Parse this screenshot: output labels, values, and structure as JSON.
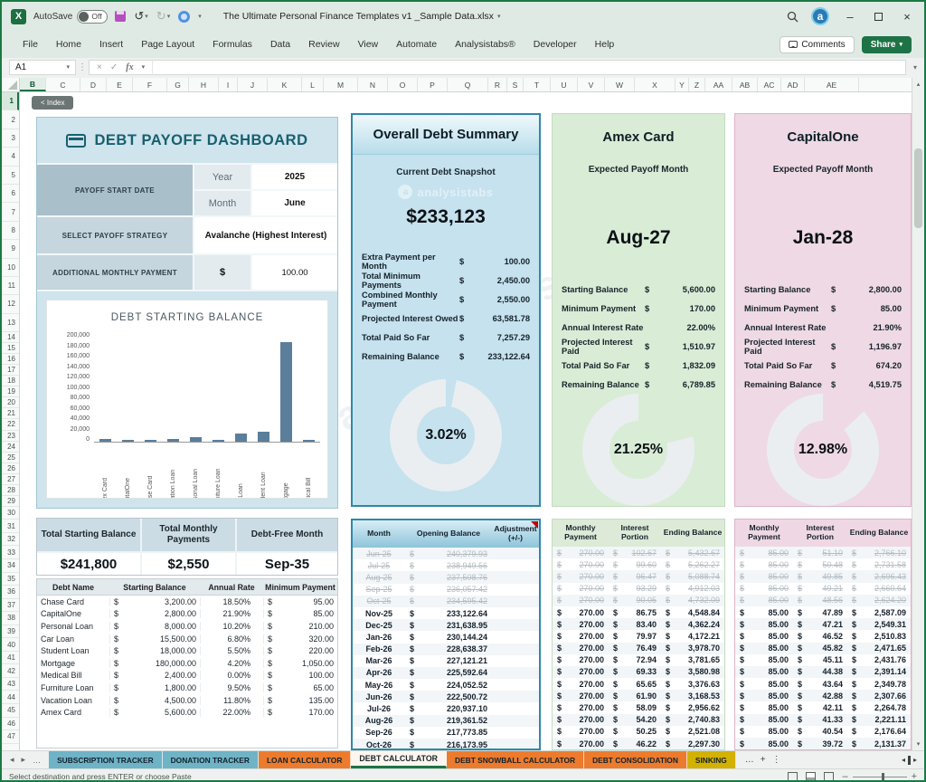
{
  "window": {
    "autosave_label": "AutoSave",
    "autosave_state": "Off",
    "title": "The Ultimate Personal Finance Templates v1 _Sample Data.xlsx",
    "minimize_glyph": "–",
    "close_glyph": "×",
    "avatar_letter": "a",
    "excel_glyph": "X"
  },
  "menu": {
    "tabs": [
      "File",
      "Home",
      "Insert",
      "Page Layout",
      "Formulas",
      "Data",
      "Review",
      "View",
      "Automate",
      "Analysistabs®",
      "Developer",
      "Help"
    ],
    "comments_label": "Comments",
    "share_label": "Share"
  },
  "formula_bar": {
    "name_box": "A1",
    "dots": "⋮",
    "cancel": "×",
    "enter": "✓",
    "fx_label": "fx",
    "value": ""
  },
  "grid": {
    "index_button_label": "< Index",
    "columns": [
      "B",
      "C",
      "D",
      "E",
      "F",
      "G",
      "H",
      "I",
      "J",
      "K",
      "L",
      "M",
      "N",
      "O",
      "P",
      "Q",
      "R",
      "S",
      "T",
      "U",
      "V",
      "W",
      "X",
      "Y",
      "Z",
      "AA",
      "AB",
      "AC",
      "AD",
      "AE"
    ],
    "row_count": 47
  },
  "dashboard": {
    "title": "DEBT PAYOFF DASHBOARD",
    "payoff_start_label": "PAYOFF START DATE",
    "year_label": "Year",
    "year_value": "2025",
    "month_label": "Month",
    "month_value": "June",
    "strategy_label": "SELECT PAYOFF STRATEGY",
    "strategy_value": "Avalanche (Highest Interest)",
    "extra_payment_label": "ADDITIONAL MONTHLY PAYMENT",
    "currency": "$",
    "extra_payment_value": "100.00"
  },
  "chart_data": [
    {
      "type": "bar",
      "title": "DEBT STARTING BALANCE",
      "categories": [
        "Amex Card",
        "CapitalOne",
        "Chase Card",
        "Vacation Loan",
        "Personal Loan",
        "Furniture Loan",
        "Car Loan",
        "Student Loan",
        "Mortgage",
        "Medical Bill"
      ],
      "values": [
        5600,
        2800,
        3200,
        4500,
        8000,
        1800,
        15500,
        18000,
        180000,
        2400
      ],
      "xlabel": "",
      "ylabel": "",
      "ylim": [
        0,
        200000
      ],
      "yticks": [
        "200,000",
        "180,000",
        "160,000",
        "140,000",
        "120,000",
        "100,000",
        "80,000",
        "60,000",
        "40,000",
        "20,000",
        "0"
      ],
      "grid": false,
      "legend": false
    },
    {
      "type": "donut",
      "panel": "Overall Debt Summary",
      "label": "3.02%",
      "value_pct": 3.02
    },
    {
      "type": "donut",
      "panel": "Amex Card",
      "label": "21.25%",
      "value_pct": 21.25
    },
    {
      "type": "donut",
      "panel": "CapitalOne",
      "label": "12.98%",
      "value_pct": 12.98
    }
  ],
  "summary_panel": {
    "title": "Overall Debt Summary",
    "subtitle": "Current Debt Snapshot",
    "watermark": "analysistabs",
    "big_value": "$233,123",
    "stats": [
      {
        "label": "Extra Payment per Month",
        "cur": "$",
        "value": "100.00"
      },
      {
        "label": "Total Minimum Payments",
        "cur": "$",
        "value": "2,450.00"
      },
      {
        "label": "Combined Monthly Payment",
        "cur": "$",
        "value": "2,550.00"
      },
      {
        "label": "Projected Interest Owed",
        "cur": "$",
        "value": "63,581.78"
      },
      {
        "label": "Total Paid So Far",
        "cur": "$",
        "value": "7,257.29"
      },
      {
        "label": "Remaining Balance",
        "cur": "$",
        "value": "233,122.64"
      }
    ]
  },
  "amex_panel": {
    "title": "Amex Card",
    "subtitle": "Expected Payoff Month",
    "big_value": "Aug-27",
    "stats": [
      {
        "label": "Starting Balance",
        "cur": "$",
        "value": "5,600.00"
      },
      {
        "label": "Minimum Payment",
        "cur": "$",
        "value": "170.00"
      },
      {
        "label": "Annual Interest Rate",
        "cur": "",
        "value": "22.00%"
      },
      {
        "label": "Projected Interest Paid",
        "cur": "$",
        "value": "1,510.97"
      },
      {
        "label": "Total Paid So Far",
        "cur": "$",
        "value": "1,832.09"
      },
      {
        "label": "Remaining Balance",
        "cur": "$",
        "value": "6,789.85"
      }
    ]
  },
  "capitalone_panel": {
    "title": "CapitalOne",
    "subtitle": "Expected Payoff Month",
    "big_value": "Jan-28",
    "stats": [
      {
        "label": "Starting Balance",
        "cur": "$",
        "value": "2,800.00"
      },
      {
        "label": "Minimum Payment",
        "cur": "$",
        "value": "85.00"
      },
      {
        "label": "Annual Interest Rate",
        "cur": "",
        "value": "21.90%"
      },
      {
        "label": "Projected Interest Paid",
        "cur": "$",
        "value": "1,196.97"
      },
      {
        "label": "Total Paid So Far",
        "cur": "$",
        "value": "674.20"
      },
      {
        "label": "Remaining Balance",
        "cur": "$",
        "value": "4,519.75"
      }
    ]
  },
  "totals": {
    "headers": [
      "Total Starting Balance",
      "Total Monthly Payments",
      "Debt-Free Month"
    ],
    "values": [
      "$241,800",
      "$2,550",
      "Sep-35"
    ]
  },
  "debt_table": {
    "headers": [
      "Debt Name",
      "Starting Balance",
      "Annual Rate",
      "Minimum Payment"
    ],
    "currency": "$",
    "rows": [
      [
        "Chase Card",
        "3,200.00",
        "18.50%",
        "95.00"
      ],
      [
        "CapitalOne",
        "2,800.00",
        "21.90%",
        "85.00"
      ],
      [
        "Personal Loan",
        "8,000.00",
        "10.20%",
        "210.00"
      ],
      [
        "Car Loan",
        "15,500.00",
        "6.80%",
        "320.00"
      ],
      [
        "Student Loan",
        "18,000.00",
        "5.50%",
        "220.00"
      ],
      [
        "Mortgage",
        "180,000.00",
        "4.20%",
        "1,050.00"
      ],
      [
        "Medical Bill",
        "2,400.00",
        "0.00%",
        "100.00"
      ],
      [
        "Furniture Loan",
        "1,800.00",
        "9.50%",
        "65.00"
      ],
      [
        "Vacation Loan",
        "4,500.00",
        "11.80%",
        "135.00"
      ],
      [
        "Amex Card",
        "5,600.00",
        "22.00%",
        "170.00"
      ]
    ]
  },
  "month_table": {
    "headers": [
      "Month",
      "Opening Balance",
      "Adjustment (+/-)"
    ],
    "currency": "$",
    "struck_count": 5,
    "rows": [
      [
        "Jun-25",
        "240,379.93"
      ],
      [
        "Jul-25",
        "238,949.56"
      ],
      [
        "Aug-25",
        "237,508.76"
      ],
      [
        "Sep-25",
        "236,057.42"
      ],
      [
        "Oct-25",
        "234,595.42"
      ],
      [
        "Nov-25",
        "233,122.64"
      ],
      [
        "Dec-25",
        "231,638.95"
      ],
      [
        "Jan-26",
        "230,144.24"
      ],
      [
        "Feb-26",
        "228,638.37"
      ],
      [
        "Mar-26",
        "227,121.21"
      ],
      [
        "Apr-26",
        "225,592.64"
      ],
      [
        "May-26",
        "224,052.52"
      ],
      [
        "Jun-26",
        "222,500.72"
      ],
      [
        "Jul-26",
        "220,937.10"
      ],
      [
        "Aug-26",
        "219,361.52"
      ],
      [
        "Sep-26",
        "217,773.85"
      ],
      [
        "Oct-26",
        "216,173.95"
      ]
    ]
  },
  "amex_schedule": {
    "headers": [
      "Monthly Payment",
      "Interest Portion",
      "Ending Balance"
    ],
    "currency": "$",
    "struck_count": 5,
    "rows": [
      [
        "270.00",
        "102.67",
        "5,432.67"
      ],
      [
        "270.00",
        "99.60",
        "5,262.27"
      ],
      [
        "270.00",
        "96.47",
        "5,088.74"
      ],
      [
        "270.00",
        "93.29",
        "4,912.03"
      ],
      [
        "270.00",
        "90.05",
        "4,732.09"
      ],
      [
        "270.00",
        "86.75",
        "4,548.84"
      ],
      [
        "270.00",
        "83.40",
        "4,362.24"
      ],
      [
        "270.00",
        "79.97",
        "4,172.21"
      ],
      [
        "270.00",
        "76.49",
        "3,978.70"
      ],
      [
        "270.00",
        "72.94",
        "3,781.65"
      ],
      [
        "270.00",
        "69.33",
        "3,580.98"
      ],
      [
        "270.00",
        "65.65",
        "3,376.63"
      ],
      [
        "270.00",
        "61.90",
        "3,168.53"
      ],
      [
        "270.00",
        "58.09",
        "2,956.62"
      ],
      [
        "270.00",
        "54.20",
        "2,740.83"
      ],
      [
        "270.00",
        "50.25",
        "2,521.08"
      ],
      [
        "270.00",
        "46.22",
        "2,297.30"
      ]
    ]
  },
  "capitalone_schedule": {
    "headers": [
      "Monthly Payment",
      "Interest Portion",
      "Ending Balance"
    ],
    "currency": "$",
    "struck_count": 5,
    "rows": [
      [
        "85.00",
        "51.10",
        "2,766.10"
      ],
      [
        "85.00",
        "50.48",
        "2,731.58"
      ],
      [
        "85.00",
        "49.85",
        "2,696.43"
      ],
      [
        "85.00",
        "49.21",
        "2,660.64"
      ],
      [
        "85.00",
        "48.56",
        "2,624.20"
      ],
      [
        "85.00",
        "47.89",
        "2,587.09"
      ],
      [
        "85.00",
        "47.21",
        "2,549.31"
      ],
      [
        "85.00",
        "46.52",
        "2,510.83"
      ],
      [
        "85.00",
        "45.82",
        "2,471.65"
      ],
      [
        "85.00",
        "45.11",
        "2,431.76"
      ],
      [
        "85.00",
        "44.38",
        "2,391.14"
      ],
      [
        "85.00",
        "43.64",
        "2,349.78"
      ],
      [
        "85.00",
        "42.88",
        "2,307.66"
      ],
      [
        "85.00",
        "42.11",
        "2,264.78"
      ],
      [
        "85.00",
        "41.33",
        "2,221.11"
      ],
      [
        "85.00",
        "40.54",
        "2,176.64"
      ],
      [
        "85.00",
        "39.72",
        "2,131.37"
      ]
    ]
  },
  "sheet_tabs": {
    "tabs": [
      {
        "label": "SUBSCRIPTION TRACKER",
        "type": "blue"
      },
      {
        "label": "DONATION TRACKER",
        "type": "blue"
      },
      {
        "label": "LOAN CALCULATOR",
        "type": "orange"
      },
      {
        "label": "DEBT CALCULATOR",
        "type": "active"
      },
      {
        "label": "DEBT SNOWBALL CALCULATOR",
        "type": "orange"
      },
      {
        "label": "DEBT CONSOLIDATION",
        "type": "orange"
      },
      {
        "label": "SINKING",
        "type": "yellow"
      }
    ],
    "ellipsis": "…",
    "add_label": "+",
    "more_label": "⋮"
  },
  "status_bar": {
    "message": "Select destination and press ENTER or choose Paste"
  },
  "colors": {
    "accent_green": "#1e7346",
    "panel_blue": "#c5e2ee",
    "panel_green": "#d9ecd6",
    "panel_pink": "#eed9e4",
    "bar_color": "#5b7e9a",
    "tab_blue": "#6fb3c7",
    "tab_orange": "#ec7b2e",
    "tab_yellow": "#d3b100"
  }
}
